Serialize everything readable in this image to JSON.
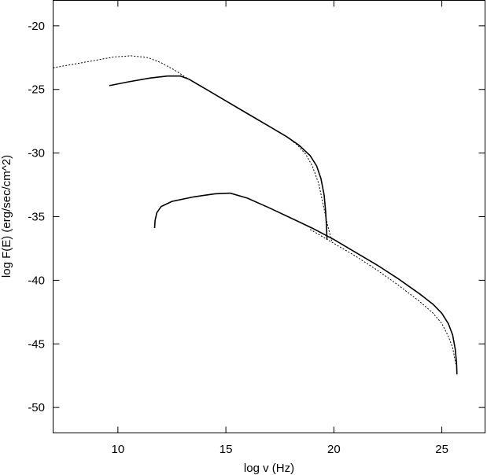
{
  "chart_data": {
    "type": "line",
    "title": "",
    "xlabel": "log v (Hz)",
    "ylabel": "log F(E) (erg/sec/cm^2)",
    "xlim": [
      7,
      27
    ],
    "ylim": [
      -52,
      -18
    ],
    "xticks": [
      10,
      15,
      20,
      25
    ],
    "yticks": [
      -20,
      -25,
      -30,
      -35,
      -40,
      -45,
      -50
    ],
    "xtick_labels": [
      "10",
      "15",
      "20",
      "25"
    ],
    "ytick_labels": [
      "-20",
      "-25",
      "-30",
      "-35",
      "-40",
      "-45",
      "-50"
    ],
    "grid": false,
    "series": [
      {
        "style": "dotted",
        "x": [
          7.0,
          8.0,
          9.0,
          9.8,
          10.6,
          11.4,
          12.0,
          12.6,
          13.2,
          14.0,
          15.0,
          16.0,
          17.0,
          17.8,
          18.3,
          18.7,
          19.0,
          19.3,
          19.5,
          19.7,
          19.9
        ],
        "y": [
          -23.3,
          -23.0,
          -22.7,
          -22.45,
          -22.35,
          -22.5,
          -22.9,
          -23.45,
          -24.1,
          -24.9,
          -25.9,
          -26.9,
          -27.9,
          -28.7,
          -29.35,
          -30.1,
          -31.0,
          -32.4,
          -34.0,
          -35.6,
          -36.9
        ]
      },
      {
        "style": "solid",
        "x": [
          9.6,
          10.5,
          11.5,
          12.3,
          12.9,
          13.3,
          14.0,
          15.0,
          16.0,
          17.0,
          17.8,
          18.4,
          18.9,
          19.2,
          19.4,
          19.55,
          19.62,
          19.66,
          19.68
        ],
        "y": [
          -24.7,
          -24.4,
          -24.1,
          -23.95,
          -23.95,
          -24.2,
          -24.9,
          -25.9,
          -26.9,
          -27.9,
          -28.7,
          -29.4,
          -30.2,
          -31.0,
          -32.0,
          -33.3,
          -34.6,
          -35.8,
          -36.8
        ]
      },
      {
        "style": "dotted",
        "x": [
          18.9,
          19.3,
          20.0,
          21.0,
          22.0,
          23.0,
          24.0,
          24.6,
          25.0,
          25.3,
          25.5,
          25.65
        ],
        "y": [
          -36.0,
          -36.4,
          -37.1,
          -38.1,
          -39.2,
          -40.4,
          -41.7,
          -42.6,
          -43.4,
          -44.4,
          -45.3,
          -46.6
        ]
      },
      {
        "style": "solid",
        "x": [
          11.7,
          11.72,
          11.8,
          12.0,
          12.5,
          13.5,
          14.5,
          15.2,
          16.0,
          17.0,
          18.0,
          19.0,
          20.0,
          21.0,
          22.0,
          23.0,
          24.0,
          24.6,
          25.0,
          25.3,
          25.5,
          25.62,
          25.68,
          25.7
        ],
        "y": [
          -35.9,
          -35.3,
          -34.7,
          -34.2,
          -33.8,
          -33.45,
          -33.2,
          -33.15,
          -33.55,
          -34.3,
          -35.1,
          -35.9,
          -36.8,
          -37.8,
          -38.8,
          -39.9,
          -41.1,
          -41.9,
          -42.6,
          -43.4,
          -44.3,
          -45.4,
          -46.5,
          -47.4
        ]
      }
    ]
  }
}
